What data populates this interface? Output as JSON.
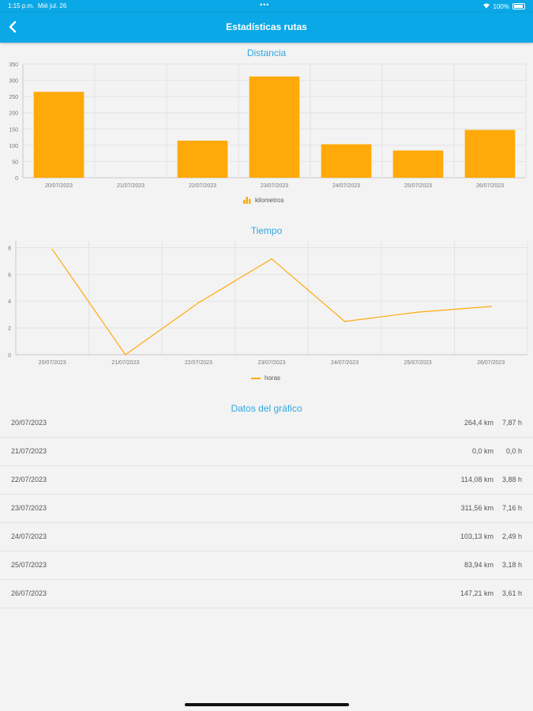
{
  "status_bar": {
    "time": "1:15 p.m.",
    "date": "Mié jul. 26",
    "dots": "•••",
    "battery": "100%"
  },
  "nav": {
    "title": "Estadísticas rutas"
  },
  "bar_chart": {
    "title": "Distancia",
    "legend": "kilometros"
  },
  "line_chart": {
    "title": "Tiempo",
    "legend": "horas"
  },
  "table": {
    "title": "Datos del gráfico",
    "rows": [
      {
        "date": "20/07/2023",
        "km": "264,4 km",
        "hours": "7,87 h"
      },
      {
        "date": "21/07/2023",
        "km": "0,0 km",
        "hours": "0,0 h"
      },
      {
        "date": "22/07/2023",
        "km": "114,08 km",
        "hours": "3,88 h"
      },
      {
        "date": "23/07/2023",
        "km": "311,56 km",
        "hours": "7,16 h"
      },
      {
        "date": "24/07/2023",
        "km": "103,13 km",
        "hours": "2,49 h"
      },
      {
        "date": "25/07/2023",
        "km": "83,94 km",
        "hours": "3,18 h"
      },
      {
        "date": "26/07/2023",
        "km": "147,21 km",
        "hours": "3,61 h"
      }
    ]
  },
  "colors": {
    "accent": "#0aa8e6",
    "series": "#ffaa0a",
    "title": "#31a7e1"
  },
  "chart_data": [
    {
      "type": "bar",
      "title": "Distancia",
      "categories": [
        "20/07/2023",
        "21/07/2023",
        "22/07/2023",
        "23/07/2023",
        "24/07/2023",
        "25/07/2023",
        "26/07/2023"
      ],
      "series": [
        {
          "name": "kilometros",
          "values": [
            264.4,
            0,
            114.08,
            311.56,
            103.13,
            83.94,
            147.21
          ]
        }
      ],
      "ylim": [
        0,
        350
      ],
      "yticks": [
        0,
        50,
        100,
        150,
        200,
        250,
        300,
        350
      ],
      "grid": true,
      "legend": "bottom-center"
    },
    {
      "type": "line",
      "title": "Tiempo",
      "categories": [
        "20/07/2023",
        "21/07/2023",
        "22/07/2023",
        "23/07/2023",
        "24/07/2023",
        "25/07/2023",
        "26/07/2023"
      ],
      "series": [
        {
          "name": "horas",
          "values": [
            7.87,
            0,
            3.88,
            7.16,
            2.49,
            3.18,
            3.61
          ]
        }
      ],
      "ylim": [
        0,
        8.5
      ],
      "yticks": [
        0,
        2,
        4,
        6,
        8
      ],
      "grid": true,
      "legend": "bottom-center"
    }
  ]
}
